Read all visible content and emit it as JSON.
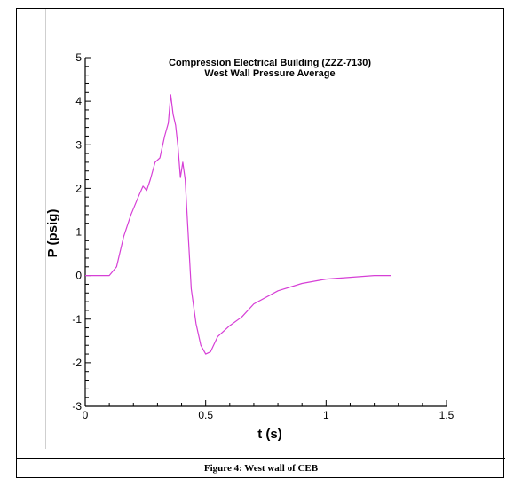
{
  "chart_data": {
    "type": "line",
    "title": "Compression Electrical Building (ZZZ-7130)",
    "subtitle": "West Wall Pressure Average",
    "xlabel": "t (s)",
    "ylabel": "P (psig)",
    "xlim": [
      0,
      1.5
    ],
    "ylim": [
      -3,
      5
    ],
    "xticks": [
      "0",
      "0.5",
      "1",
      "1.5"
    ],
    "yticks": [
      "-3",
      "-2",
      "-1",
      "0",
      "1",
      "2",
      "3",
      "4",
      "5"
    ],
    "grid": false,
    "series": [
      {
        "color": "#d63fd6",
        "x": [
          0,
          0.1,
          0.13,
          0.16,
          0.19,
          0.22,
          0.24,
          0.255,
          0.27,
          0.29,
          0.31,
          0.33,
          0.345,
          0.355,
          0.365,
          0.375,
          0.385,
          0.395,
          0.405,
          0.415,
          0.425,
          0.44,
          0.46,
          0.48,
          0.5,
          0.52,
          0.55,
          0.6,
          0.65,
          0.7,
          0.8,
          0.9,
          1.0,
          1.1,
          1.2,
          1.27
        ],
        "values": [
          0,
          0,
          0.2,
          0.9,
          1.4,
          1.8,
          2.05,
          1.95,
          2.2,
          2.6,
          2.7,
          3.2,
          3.5,
          4.15,
          3.7,
          3.45,
          2.95,
          2.25,
          2.6,
          2.2,
          1.2,
          -0.3,
          -1.1,
          -1.6,
          -1.8,
          -1.75,
          -1.4,
          -1.15,
          -0.95,
          -0.65,
          -0.35,
          -0.18,
          -0.08,
          -0.04,
          0,
          0
        ]
      }
    ]
  },
  "caption": "Figure 4:  West wall of CEB"
}
